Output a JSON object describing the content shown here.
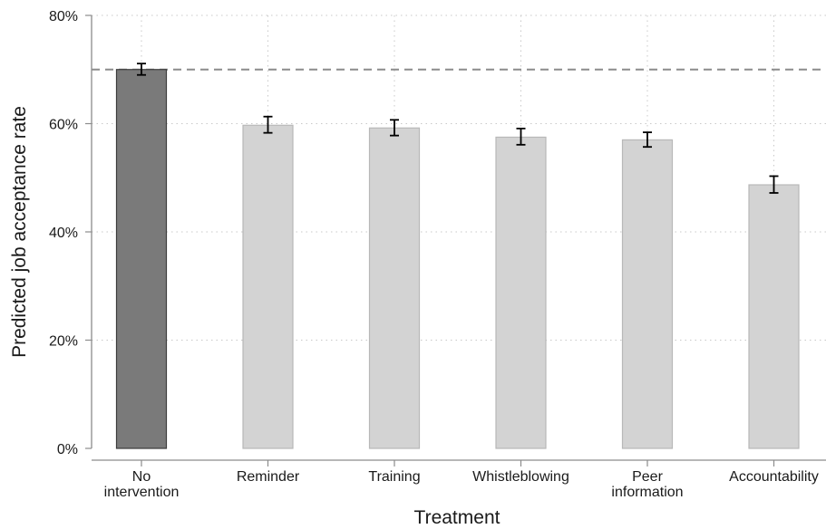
{
  "chart_data": {
    "type": "bar",
    "xlabel": "Treatment",
    "ylabel": "Predicted job acceptance rate",
    "ylim": [
      0,
      0.8
    ],
    "y_ticks": [
      {
        "value": 0.0,
        "label": "0%"
      },
      {
        "value": 0.2,
        "label": "20%"
      },
      {
        "value": 0.4,
        "label": "40%"
      },
      {
        "value": 0.6,
        "label": "60%"
      },
      {
        "value": 0.8,
        "label": "80%"
      }
    ],
    "grid": "dotted",
    "reference_line": 0.7,
    "categories": [
      [
        "No",
        "intervention"
      ],
      [
        "Reminder"
      ],
      [
        "Training"
      ],
      [
        "Whistleblowing"
      ],
      [
        "Peer",
        "information"
      ],
      [
        "Accountability"
      ]
    ],
    "values": [
      0.7,
      0.597,
      0.592,
      0.575,
      0.57,
      0.487
    ],
    "error_low": [
      0.69,
      0.583,
      0.578,
      0.561,
      0.557,
      0.472
    ],
    "error_high": [
      0.711,
      0.613,
      0.607,
      0.591,
      0.584,
      0.503
    ],
    "colors": {
      "baseline_fill": "#7a7a7a",
      "baseline_stroke": "#3c3c3c",
      "treatment_fill": "#d3d3d3",
      "treatment_stroke": "#b8b8b8",
      "error_bar": "#000000",
      "reference_line": "#8c8c8c",
      "grid": "#c8c8c8",
      "axis": "#8c8c8c"
    }
  }
}
